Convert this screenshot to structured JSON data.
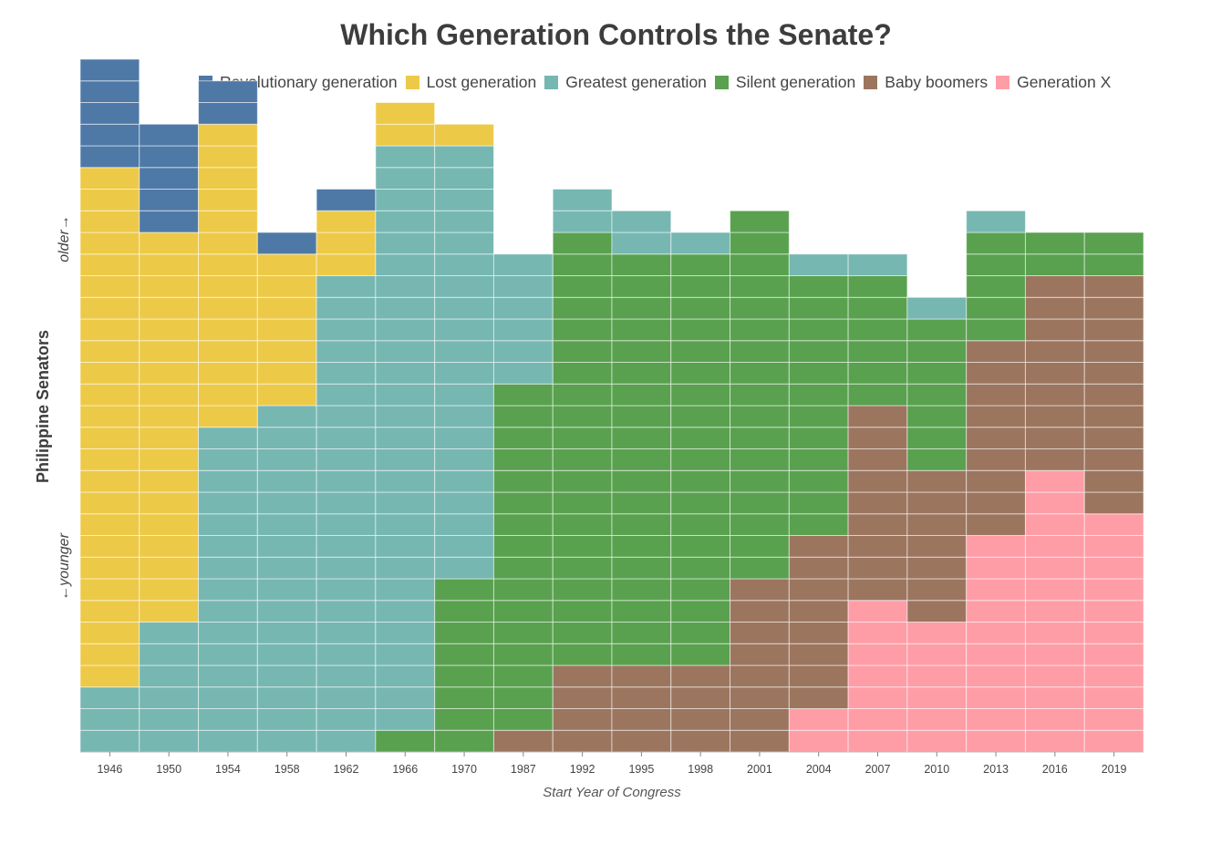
{
  "title": "Which Generation Controls the Senate?",
  "chart_data": {
    "type": "stacked-unit-bar",
    "title": "Which Generation Controls the Senate?",
    "xlabel": "Start Year of Congress",
    "ylabel": "Philippine Senators",
    "y_annotation_top": "older→",
    "y_annotation_bottom": "←younger",
    "categories": [
      "1946",
      "1950",
      "1954",
      "1958",
      "1962",
      "1966",
      "1970",
      "1987",
      "1992",
      "1995",
      "1998",
      "2001",
      "2004",
      "2007",
      "2010",
      "2013",
      "2016",
      "2019"
    ],
    "stack_order": "bottom is youngest, top is oldest",
    "series": [
      {
        "name": "Revolutionary generation",
        "color": "#4e79a7",
        "values": [
          5,
          5,
          2,
          1,
          1,
          0,
          0,
          0,
          0,
          0,
          0,
          0,
          0,
          0,
          0,
          0,
          0,
          0
        ]
      },
      {
        "name": "Lost generation",
        "color": "#edc948",
        "values": [
          24,
          18,
          14,
          7,
          3,
          2,
          1,
          0,
          0,
          0,
          0,
          0,
          0,
          0,
          0,
          0,
          0,
          0
        ]
      },
      {
        "name": "Greatest generation",
        "color": "#76b7b2",
        "values": [
          3,
          6,
          15,
          16,
          22,
          27,
          20,
          6,
          2,
          2,
          1,
          0,
          1,
          1,
          1,
          1,
          0,
          0
        ]
      },
      {
        "name": "Silent generation",
        "color": "#59a14f",
        "values": [
          0,
          0,
          0,
          0,
          0,
          1,
          8,
          16,
          20,
          19,
          19,
          17,
          12,
          6,
          7,
          5,
          2,
          2
        ]
      },
      {
        "name": "Baby boomers",
        "color": "#9c755f",
        "values": [
          0,
          0,
          0,
          0,
          0,
          0,
          0,
          1,
          4,
          4,
          4,
          8,
          8,
          9,
          7,
          9,
          9,
          11
        ]
      },
      {
        "name": "Generation X",
        "color": "#ff9da7",
        "values": [
          0,
          0,
          0,
          0,
          0,
          0,
          0,
          0,
          0,
          0,
          0,
          0,
          2,
          7,
          6,
          10,
          13,
          11
        ]
      }
    ],
    "grid": true,
    "legend_position": "top"
  }
}
